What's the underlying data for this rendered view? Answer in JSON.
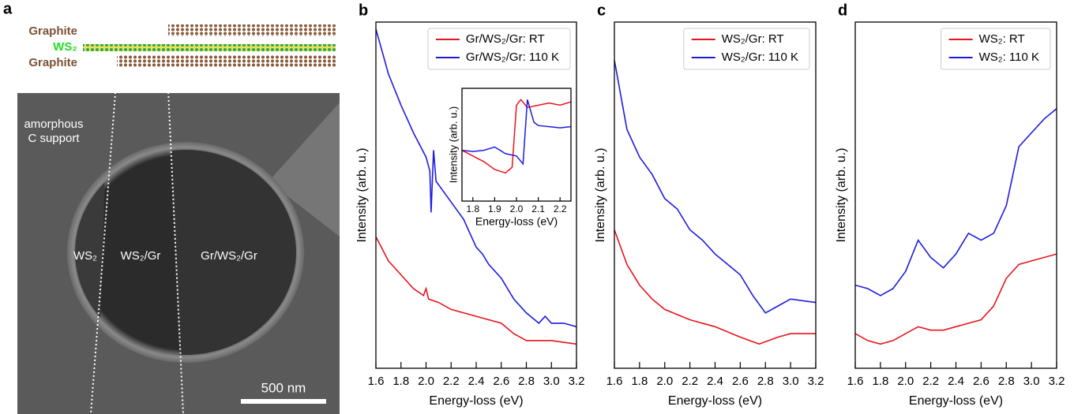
{
  "panel_a": {
    "label": "a",
    "schematic_labels": [
      "Graphite",
      "WS₂",
      "Graphite"
    ],
    "support_label": [
      "amorphous",
      "C support"
    ],
    "region_labels": [
      "WS₂",
      "WS₂/Gr",
      "Gr/WS₂/Gr"
    ],
    "scale_bar": "500 nm"
  },
  "chart_data": [
    {
      "type": "line",
      "panel_label": "b",
      "xlabel": "Energy-loss (eV)",
      "ylabel": "Intensity (arb. u.)",
      "xlim": [
        1.6,
        3.2
      ],
      "ylim": [
        0,
        100
      ],
      "xticks": [
        1.6,
        1.8,
        {
          "value": 2,
          "label": "2.0"
        },
        2.2,
        2.4,
        2.6,
        2.8,
        {
          "value": 3,
          "label": "3.0"
        },
        3.2
      ],
      "legend": "upper right",
      "series": [
        {
          "name": "Gr/WS₂/Gr: RT",
          "color": "#e8141c",
          "x": [
            1.6,
            1.7,
            1.8,
            1.9,
            1.98,
            2.0,
            2.02,
            2.1,
            2.2,
            2.4,
            2.6,
            2.7,
            2.8,
            3.0,
            3.2
          ],
          "values": [
            38,
            31,
            27,
            23,
            21,
            23,
            20,
            19,
            17,
            15,
            13,
            10,
            8,
            8,
            7
          ]
        },
        {
          "name": "Gr/WS₂/Gr: 110 K",
          "color": "#1c1ce0",
          "x": [
            1.6,
            1.7,
            1.8,
            1.9,
            2.0,
            2.03,
            2.04,
            2.06,
            2.08,
            2.1,
            2.2,
            2.3,
            2.4,
            2.45,
            2.5,
            2.6,
            2.7,
            2.8,
            2.9,
            2.95,
            3.0,
            3.1,
            3.2
          ],
          "values": [
            98,
            85,
            76,
            68,
            61,
            57,
            45,
            63,
            54,
            53,
            48,
            43,
            35,
            33,
            30,
            26,
            20,
            16,
            13,
            15,
            13,
            13,
            12
          ]
        }
      ]
    },
    {
      "type": "line",
      "xlabel": "Energy-loss (eV)",
      "ylabel": "Intensity (arb. u.)",
      "xlim": [
        1.75,
        2.25
      ],
      "ylim": [
        0,
        100
      ],
      "xticks": [
        1.8,
        1.9,
        {
          "value": 2,
          "label": "2.0"
        },
        2.1,
        2.2
      ],
      "series": [
        {
          "color": "#e8141c",
          "x": [
            1.75,
            1.8,
            1.85,
            1.9,
            1.95,
            1.98,
            2.0,
            2.02,
            2.05,
            2.1,
            2.15,
            2.2,
            2.25
          ],
          "values": [
            45,
            40,
            35,
            28,
            25,
            30,
            85,
            90,
            83,
            85,
            87,
            85,
            88
          ]
        },
        {
          "color": "#1c1ce0",
          "x": [
            1.75,
            1.8,
            1.85,
            1.9,
            1.95,
            2.0,
            2.03,
            2.05,
            2.08,
            2.1,
            2.15,
            2.2,
            2.25
          ],
          "values": [
            45,
            44,
            45,
            48,
            42,
            40,
            33,
            90,
            70,
            67,
            66,
            65,
            66
          ]
        }
      ]
    },
    {
      "type": "line",
      "panel_label": "c",
      "xlabel": "Energy-loss (eV)",
      "ylabel": "Intensity (arb. u.)",
      "xlim": [
        1.6,
        3.2
      ],
      "ylim": [
        0,
        100
      ],
      "xticks": [
        1.6,
        1.8,
        {
          "value": 2,
          "label": "2.0"
        },
        2.2,
        2.4,
        2.6,
        2.8,
        {
          "value": 3,
          "label": "3.0"
        },
        3.2
      ],
      "legend": "upper right",
      "series": [
        {
          "name": "WS₂/Gr: RT",
          "color": "#e8141c",
          "x": [
            1.6,
            1.7,
            1.8,
            1.9,
            2.0,
            2.2,
            2.4,
            2.6,
            2.75,
            2.9,
            3.0,
            3.2
          ],
          "values": [
            40,
            30,
            24,
            20,
            17,
            14,
            12,
            9,
            7,
            9,
            10,
            10
          ]
        },
        {
          "name": "WS₂/Gr: 110 K",
          "color": "#1c1ce0",
          "x": [
            1.6,
            1.7,
            1.8,
            1.9,
            2.0,
            2.1,
            2.2,
            2.3,
            2.4,
            2.5,
            2.6,
            2.7,
            2.8,
            2.9,
            3.0,
            3.2
          ],
          "values": [
            89,
            69,
            61,
            56,
            49,
            46,
            40,
            37,
            33,
            30,
            27,
            21,
            16,
            18,
            20,
            19
          ]
        }
      ]
    },
    {
      "type": "line",
      "panel_label": "d",
      "xlabel": "Energy-loss (eV)",
      "ylabel": "Intensity (arb. u.)",
      "xlim": [
        1.6,
        3.2
      ],
      "ylim": [
        0,
        100
      ],
      "xticks": [
        1.6,
        1.8,
        {
          "value": 2,
          "label": "2.0"
        },
        2.2,
        2.4,
        2.6,
        2.8,
        {
          "value": 3,
          "label": "3.0"
        },
        3.2
      ],
      "legend": "upper right",
      "series": [
        {
          "name": "WS₂: RT",
          "color": "#e8141c",
          "x": [
            1.6,
            1.7,
            1.8,
            1.9,
            2.0,
            2.1,
            2.2,
            2.3,
            2.4,
            2.5,
            2.6,
            2.7,
            2.8,
            2.9,
            3.0,
            3.2
          ],
          "values": [
            10,
            8,
            7,
            8,
            10,
            12,
            11,
            11,
            12,
            13,
            14,
            18,
            26,
            30,
            31,
            33
          ]
        },
        {
          "name": "WS₂: 110 K",
          "color": "#1c1ce0",
          "x": [
            1.6,
            1.7,
            1.8,
            1.9,
            2.0,
            2.1,
            2.2,
            2.3,
            2.4,
            2.5,
            2.6,
            2.7,
            2.8,
            2.9,
            3.0,
            3.1,
            3.2
          ],
          "values": [
            24,
            23,
            21,
            23,
            28,
            37,
            32,
            29,
            33,
            39,
            37,
            39,
            47,
            64,
            68,
            72,
            75
          ]
        }
      ]
    }
  ]
}
